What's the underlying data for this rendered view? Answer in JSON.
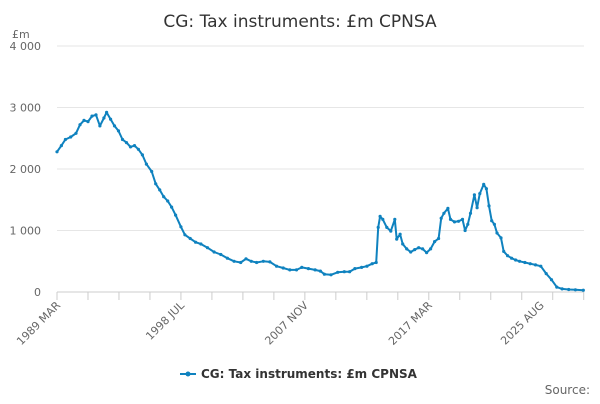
{
  "chart_data": {
    "type": "line",
    "title": "CG: Tax instruments: £m CPNSA",
    "ylabel": "£m",
    "xlabel": "",
    "ylim": [
      0,
      4000
    ],
    "y_ticks": [
      0,
      1000,
      2000,
      3000,
      4000
    ],
    "y_tick_labels": [
      "0",
      "1 000",
      "2 000",
      "3 000",
      "4 000"
    ],
    "x_tick_labels": [
      "1989 MAR",
      "1998 JUL",
      "2007 NOV",
      "2017 MAR",
      "2025 AUG"
    ],
    "x_tick_dates": [
      1989.167,
      1998.5,
      2007.833,
      2017.167,
      2025.583
    ],
    "legend_position": "bottom",
    "grid": "horizontal",
    "series": [
      {
        "name": "CG: Tax instruments: £m CPNSA",
        "color": "#0f82bf",
        "points": [
          [
            1989.17,
            2280
          ],
          [
            1989.5,
            2380
          ],
          [
            1989.8,
            2480
          ],
          [
            1990.2,
            2520
          ],
          [
            1990.6,
            2580
          ],
          [
            1990.9,
            2720
          ],
          [
            1991.2,
            2790
          ],
          [
            1991.5,
            2770
          ],
          [
            1991.8,
            2860
          ],
          [
            1992.1,
            2880
          ],
          [
            1992.4,
            2700
          ],
          [
            1992.7,
            2830
          ],
          [
            1992.9,
            2920
          ],
          [
            1993.2,
            2810
          ],
          [
            1993.5,
            2700
          ],
          [
            1993.8,
            2620
          ],
          [
            1994.1,
            2480
          ],
          [
            1994.4,
            2430
          ],
          [
            1994.7,
            2360
          ],
          [
            1995.0,
            2380
          ],
          [
            1995.3,
            2320
          ],
          [
            1995.6,
            2230
          ],
          [
            1995.9,
            2080
          ],
          [
            1996.3,
            1960
          ],
          [
            1996.6,
            1760
          ],
          [
            1996.9,
            1660
          ],
          [
            1997.2,
            1550
          ],
          [
            1997.5,
            1480
          ],
          [
            1997.8,
            1380
          ],
          [
            1998.1,
            1250
          ],
          [
            1998.5,
            1060
          ],
          [
            1998.8,
            930
          ],
          [
            1999.2,
            870
          ],
          [
            1999.6,
            810
          ],
          [
            2000.0,
            780
          ],
          [
            2000.5,
            720
          ],
          [
            2001.0,
            650
          ],
          [
            2001.5,
            610
          ],
          [
            2002.0,
            550
          ],
          [
            2002.5,
            500
          ],
          [
            2003.0,
            480
          ],
          [
            2003.4,
            540
          ],
          [
            2003.8,
            500
          ],
          [
            2004.2,
            480
          ],
          [
            2004.7,
            500
          ],
          [
            2005.2,
            490
          ],
          [
            2005.7,
            420
          ],
          [
            2006.2,
            390
          ],
          [
            2006.7,
            360
          ],
          [
            2007.2,
            360
          ],
          [
            2007.6,
            400
          ],
          [
            2008.1,
            380
          ],
          [
            2008.6,
            360
          ],
          [
            2009.0,
            340
          ],
          [
            2009.3,
            290
          ],
          [
            2009.8,
            280
          ],
          [
            2010.3,
            320
          ],
          [
            2010.8,
            330
          ],
          [
            2011.2,
            330
          ],
          [
            2011.6,
            380
          ],
          [
            2012.1,
            400
          ],
          [
            2012.5,
            420
          ],
          [
            2012.9,
            460
          ],
          [
            2013.2,
            480
          ],
          [
            2013.35,
            1050
          ],
          [
            2013.5,
            1230
          ],
          [
            2013.7,
            1180
          ],
          [
            2014.0,
            1050
          ],
          [
            2014.3,
            990
          ],
          [
            2014.6,
            1180
          ],
          [
            2014.75,
            860
          ],
          [
            2015.0,
            940
          ],
          [
            2015.2,
            780
          ],
          [
            2015.5,
            700
          ],
          [
            2015.8,
            650
          ],
          [
            2016.1,
            690
          ],
          [
            2016.4,
            720
          ],
          [
            2016.7,
            700
          ],
          [
            2017.0,
            640
          ],
          [
            2017.3,
            700
          ],
          [
            2017.6,
            820
          ],
          [
            2017.9,
            870
          ],
          [
            2018.1,
            1200
          ],
          [
            2018.3,
            1280
          ],
          [
            2018.6,
            1360
          ],
          [
            2018.8,
            1180
          ],
          [
            2019.1,
            1140
          ],
          [
            2019.4,
            1150
          ],
          [
            2019.7,
            1180
          ],
          [
            2019.9,
            1000
          ],
          [
            2020.1,
            1100
          ],
          [
            2020.3,
            1280
          ],
          [
            2020.6,
            1580
          ],
          [
            2020.8,
            1370
          ],
          [
            2021.0,
            1600
          ],
          [
            2021.3,
            1750
          ],
          [
            2021.5,
            1680
          ],
          [
            2021.7,
            1400
          ],
          [
            2021.9,
            1160
          ],
          [
            2022.1,
            1100
          ],
          [
            2022.3,
            960
          ],
          [
            2022.6,
            880
          ],
          [
            2022.8,
            660
          ],
          [
            2023.1,
            590
          ],
          [
            2023.4,
            550
          ],
          [
            2023.7,
            520
          ],
          [
            2024.0,
            500
          ],
          [
            2024.4,
            480
          ],
          [
            2024.8,
            460
          ],
          [
            2025.2,
            440
          ],
          [
            2025.6,
            420
          ],
          [
            2026.0,
            300
          ],
          [
            2026.4,
            200
          ],
          [
            2026.8,
            80
          ],
          [
            2027.2,
            50
          ],
          [
            2027.7,
            40
          ],
          [
            2028.2,
            35
          ],
          [
            2028.8,
            30
          ]
        ]
      }
    ]
  },
  "footer": {
    "source_label": "Source:"
  }
}
